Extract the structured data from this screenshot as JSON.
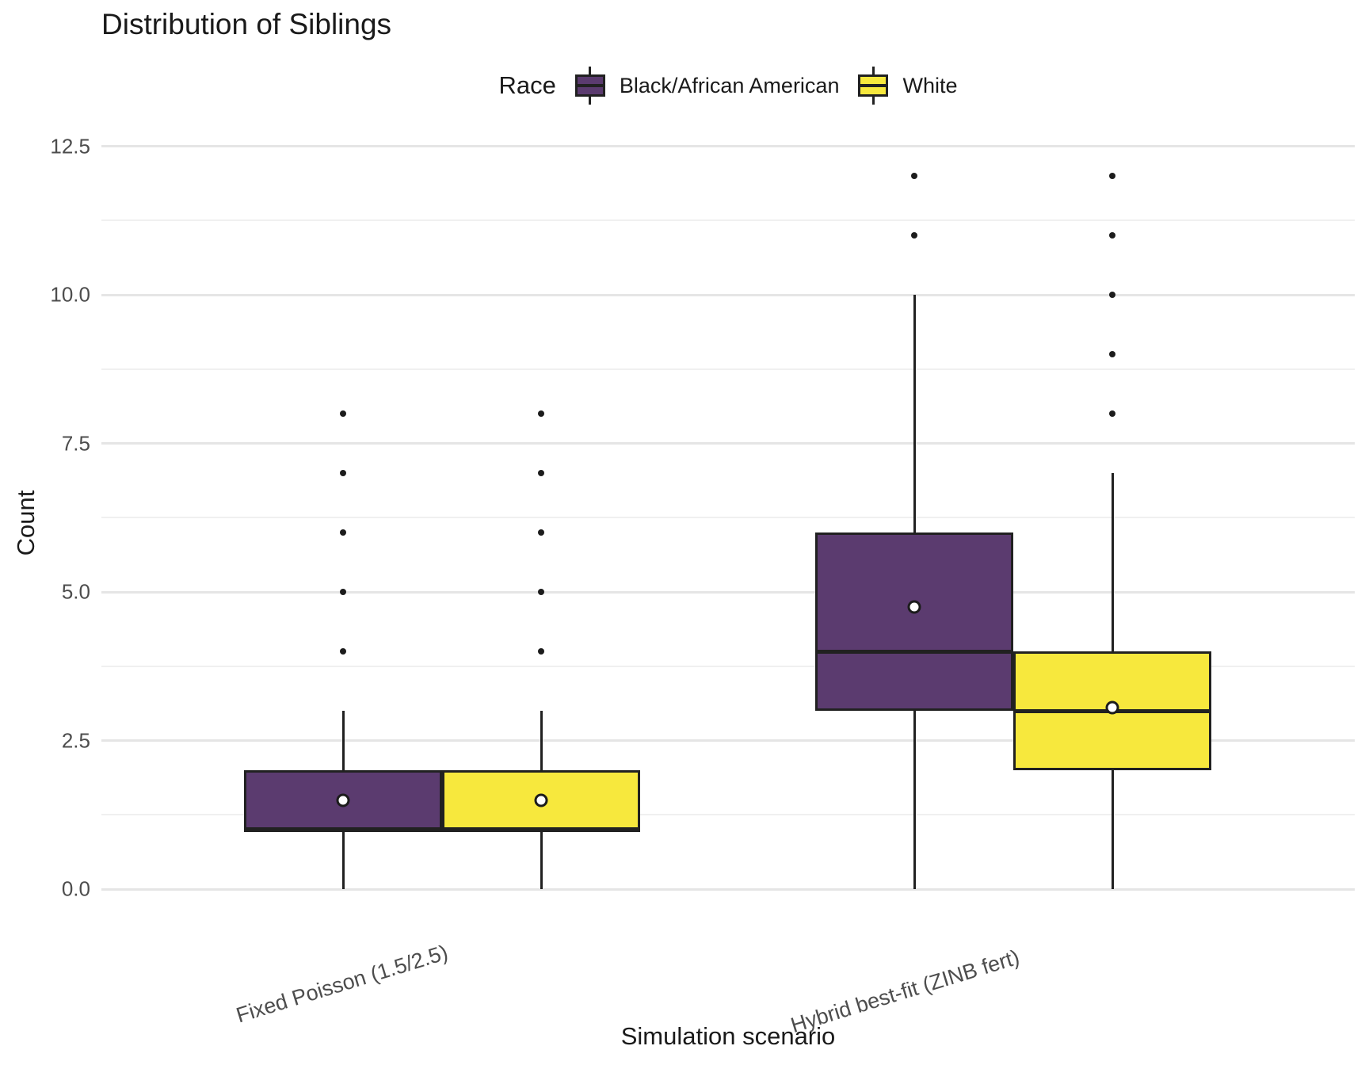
{
  "title": "Distribution of Siblings",
  "legend": {
    "title": "Race",
    "items": [
      {
        "label": "Black/African American",
        "color": "#5b3b6f"
      },
      {
        "label": "White",
        "color": "#f7e83d"
      }
    ]
  },
  "axes": {
    "x_title": "Simulation scenario",
    "y_title": "Count",
    "y_tick_labels": [
      "0.0",
      "2.5",
      "5.0",
      "7.5",
      "10.0",
      "12.5"
    ]
  },
  "chart_data": {
    "type": "boxplot",
    "title": "Distribution of Siblings",
    "xlabel": "Simulation scenario",
    "ylabel": "Count",
    "ylim": [
      0,
      12.5
    ],
    "y_tick_values": [
      0,
      2.5,
      5,
      7.5,
      10,
      12.5
    ],
    "grid": "major+minor horizontal, no vertical",
    "legend_position": "top-center",
    "legend_title": "Race",
    "categories": [
      "Fixed Poisson (1.5/2.5)",
      "Hybrid best-fit (ZINB fert)"
    ],
    "series": [
      {
        "name": "Black/African American",
        "fill": "#5b3b6f",
        "boxes": [
          {
            "category": "Fixed Poisson (1.5/2.5)",
            "whisker_low": 0,
            "q1": 1,
            "median": 1,
            "q3": 2,
            "whisker_high": 3,
            "mean": 1.5,
            "outliers": [
              4,
              5,
              6,
              7,
              8
            ]
          },
          {
            "category": "Hybrid best-fit (ZINB fert)",
            "whisker_low": 0,
            "q1": 3,
            "median": 4,
            "q3": 6,
            "whisker_high": 10,
            "mean": 4.75,
            "outliers": [
              11,
              12
            ]
          }
        ]
      },
      {
        "name": "White",
        "fill": "#f7e83d",
        "boxes": [
          {
            "category": "Fixed Poisson (1.5/2.5)",
            "whisker_low": 0,
            "q1": 1,
            "median": 1,
            "q3": 2,
            "whisker_high": 3,
            "mean": 1.5,
            "outliers": [
              4,
              5,
              6,
              7,
              8
            ]
          },
          {
            "category": "Hybrid best-fit (ZINB fert)",
            "whisker_low": 0,
            "q1": 2,
            "median": 3,
            "q3": 4,
            "whisker_high": 7,
            "mean": 3.05,
            "outliers": [
              8,
              9,
              10,
              11,
              12
            ]
          }
        ]
      }
    ],
    "style": {
      "box_border_color": "#212121",
      "gridline_major_color": "#e5e5e5",
      "gridline_minor_color": "#f0f0f0",
      "tick_label_color": "#4d4d4d",
      "title_color": "#1a1a1a",
      "mean_marker": "white circle with black outline",
      "outlier_marker": "small black dot"
    }
  }
}
